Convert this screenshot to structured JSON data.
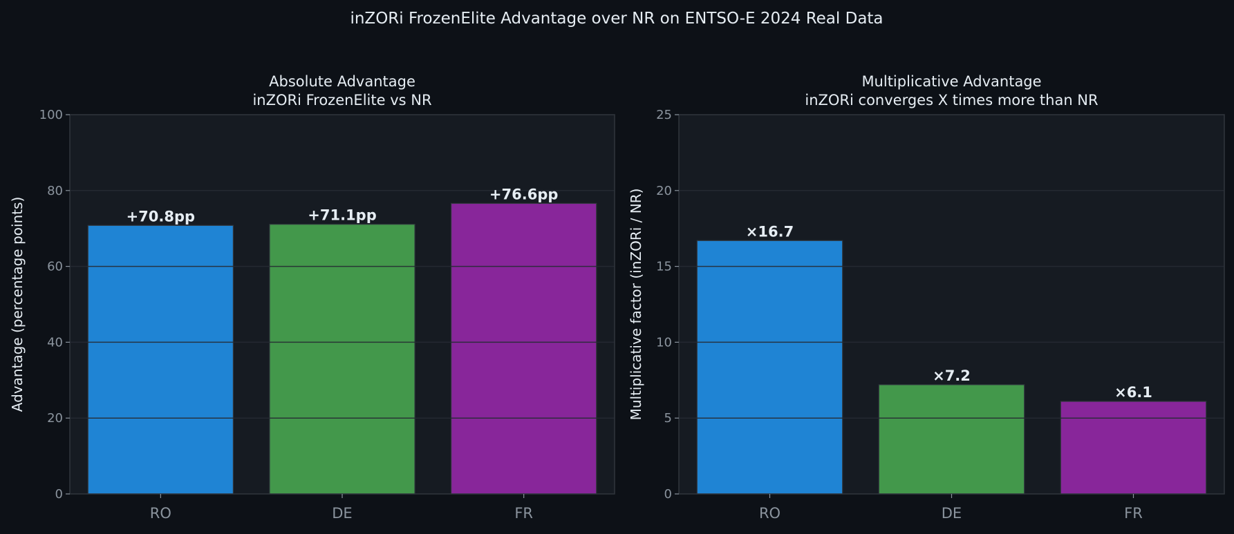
{
  "title": "inZORi FrozenElite Advantage over NR on ENTSO-E 2024 Real Data",
  "colors": {
    "background": "#0d1117",
    "axes": "#161b22",
    "spine": "#30363d",
    "text": "#e6edf3",
    "tick": "#8b949e",
    "grid": "#262b33"
  },
  "chart_data": [
    {
      "type": "bar",
      "title": "Absolute Advantage\ninZORi FrozenElite vs NR",
      "title_lines": [
        "Absolute Advantage",
        "inZORi FrozenElite vs NR"
      ],
      "xlabel": "",
      "ylabel": "Advantage (percentage points)",
      "categories": [
        "RO",
        "DE",
        "FR"
      ],
      "values": [
        70.8,
        71.1,
        76.6
      ],
      "data_labels": [
        "+70.8pp",
        "+71.1pp",
        "+76.6pp"
      ],
      "bar_colors": [
        "#1f84d4",
        "#43984b",
        "#88269a"
      ],
      "ylim": [
        0,
        100
      ],
      "yticks": [
        0,
        20,
        40,
        60,
        80,
        100
      ],
      "grid": true
    },
    {
      "type": "bar",
      "title": "Multiplicative Advantage\ninZORi converges X times more than NR",
      "title_lines": [
        "Multiplicative Advantage",
        "inZORi converges X times more than NR"
      ],
      "xlabel": "",
      "ylabel": "Multiplicative factor (inZORi / NR)",
      "categories": [
        "RO",
        "DE",
        "FR"
      ],
      "values": [
        16.7,
        7.2,
        6.1
      ],
      "data_labels": [
        "×16.7",
        "×7.2",
        "×6.1"
      ],
      "bar_colors": [
        "#1f84d4",
        "#43984b",
        "#88269a"
      ],
      "ylim": [
        0,
        25
      ],
      "yticks": [
        0,
        5,
        10,
        15,
        20,
        25
      ],
      "grid": true
    }
  ]
}
